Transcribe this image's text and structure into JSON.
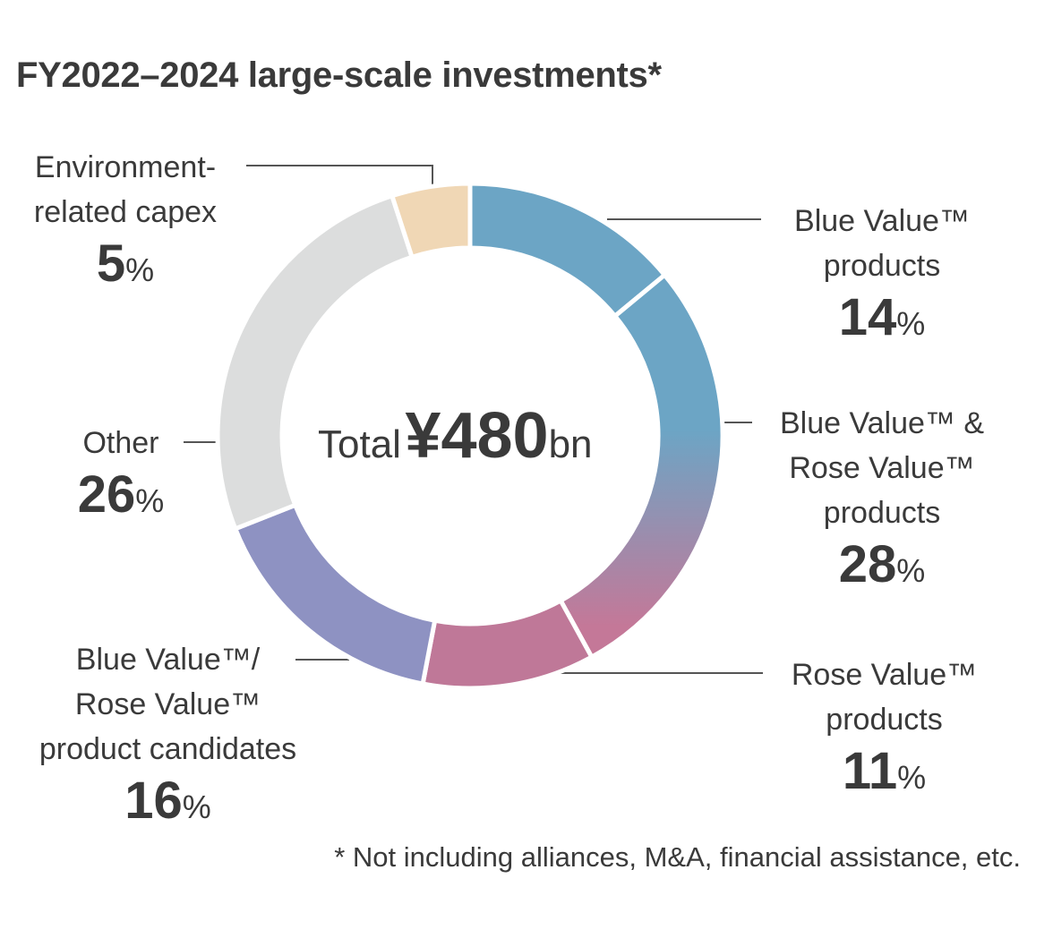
{
  "chart_data": {
    "type": "pie",
    "title": "FY2022–2024 large-scale investments*",
    "center_label": {
      "prefix": "Total",
      "amount": "¥480",
      "unit": "bn"
    },
    "unit_symbol": "%",
    "slices": [
      {
        "label_lines": [
          "Blue Value™",
          "products"
        ],
        "value": 14,
        "color": "#6ca5c5"
      },
      {
        "label_lines": [
          "Blue Value™ &",
          "Rose Value™",
          "products"
        ],
        "value": 28,
        "color_start": "#6ca5c5",
        "color_end": "#c47898"
      },
      {
        "label_lines": [
          "Rose Value™",
          "products"
        ],
        "value": 11,
        "color": "#bf7898"
      },
      {
        "label_lines": [
          "Blue Value™/",
          "Rose Value™",
          "product candidates"
        ],
        "value": 16,
        "color": "#8e92c2"
      },
      {
        "label_lines": [
          "Other"
        ],
        "value": 26,
        "color": "#dcdddd"
      },
      {
        "label_lines": [
          "Environment-",
          "related capex"
        ],
        "value": 5,
        "color": "#f0d7b5"
      }
    ],
    "footnote": "* Not including alliances, M&A, financial assistance, etc."
  }
}
